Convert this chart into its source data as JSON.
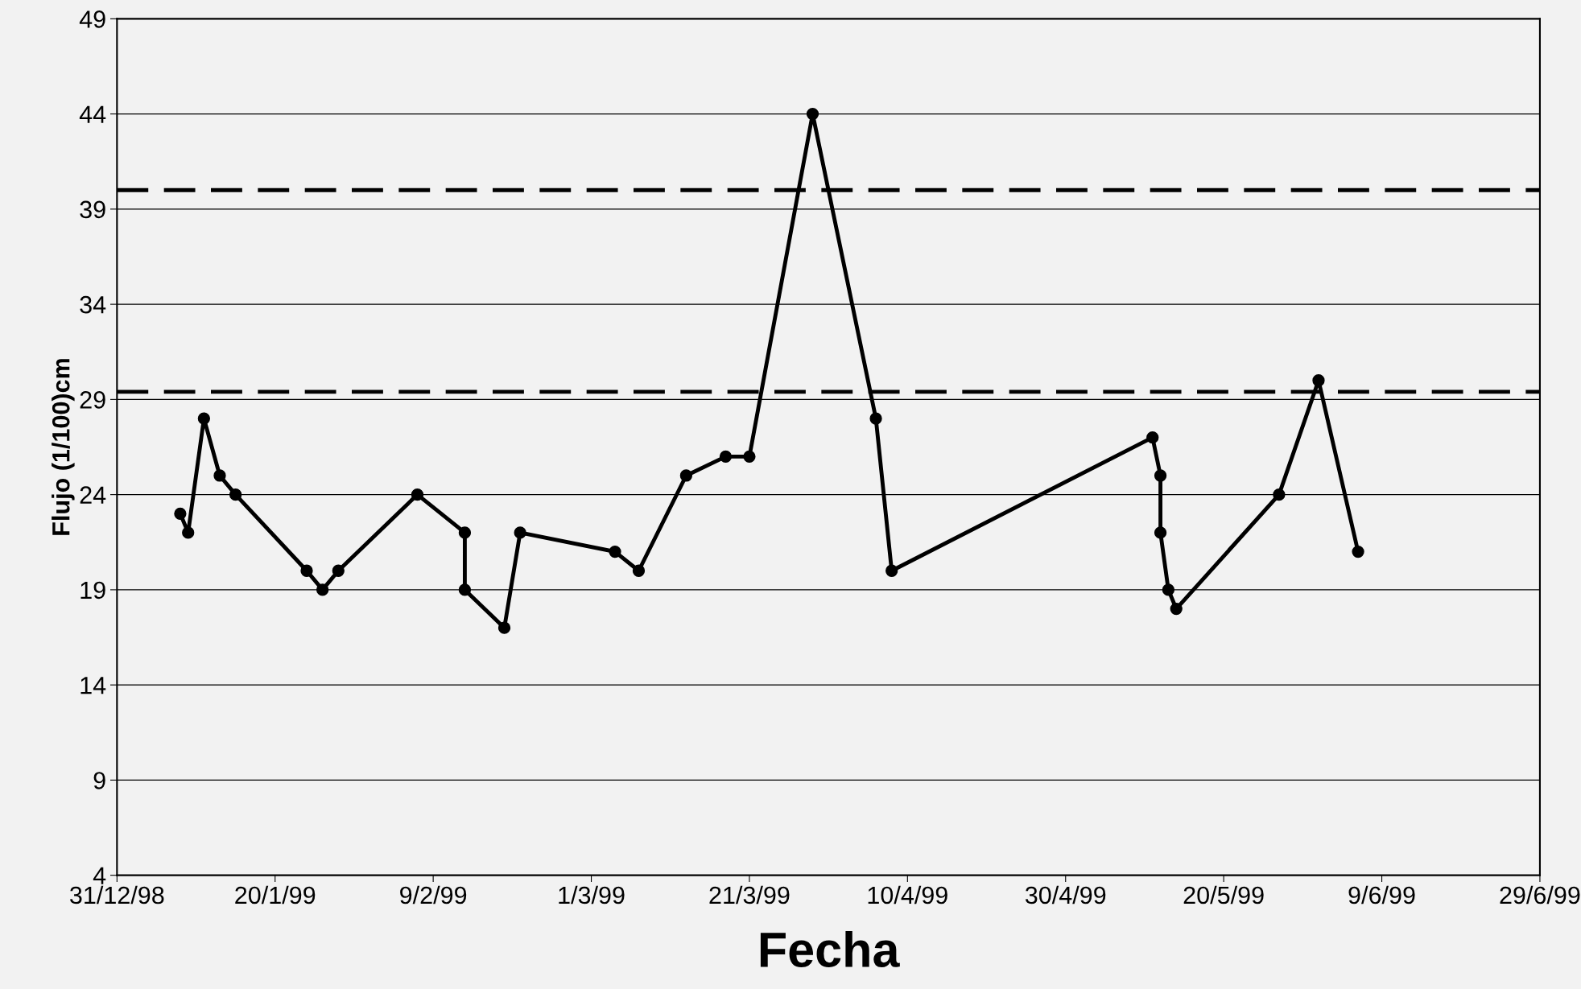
{
  "chart_data": {
    "type": "line",
    "xlabel": "Fecha",
    "ylabel": "Flujo (1/100)cm",
    "x": [
      "1999-01-08",
      "1999-01-09",
      "1999-01-11",
      "1999-01-13",
      "1999-01-15",
      "1999-01-24",
      "1999-01-26",
      "1999-01-28",
      "1999-02-07",
      "1999-02-13",
      "1999-02-13",
      "1999-02-18",
      "1999-02-20",
      "1999-03-04",
      "1999-03-07",
      "1999-03-13",
      "1999-03-18",
      "1999-03-21",
      "1999-03-29",
      "1999-04-06",
      "1999-04-08",
      "1999-05-11",
      "1999-05-12",
      "1999-05-12",
      "1999-05-13",
      "1999-05-14",
      "1999-05-27",
      "1999-06-01",
      "1999-06-06"
    ],
    "series": [
      {
        "color": "#000000",
        "values": [
          23,
          22,
          28,
          25,
          24,
          20,
          19,
          20,
          24,
          22,
          19,
          17,
          22,
          21,
          20,
          25,
          26,
          26,
          44,
          28,
          20,
          27,
          25,
          22,
          19,
          18,
          24,
          30,
          21
        ]
      }
    ],
    "marker": "circle",
    "line_style": "solid",
    "xlim": [
      "1998-12-31",
      "1999-06-29"
    ],
    "xticks": [
      {
        "value": "1998-12-31",
        "label": "31/12/98"
      },
      {
        "value": "1999-01-20",
        "label": "20/1/99"
      },
      {
        "value": "1999-02-09",
        "label": "9/2/99"
      },
      {
        "value": "1999-03-01",
        "label": "1/3/99"
      },
      {
        "value": "1999-03-21",
        "label": "21/3/99"
      },
      {
        "value": "1999-04-10",
        "label": "10/4/99"
      },
      {
        "value": "1999-04-30",
        "label": "30/4/99"
      },
      {
        "value": "1999-05-20",
        "label": "20/5/99"
      },
      {
        "value": "1999-06-09",
        "label": "9/6/99"
      },
      {
        "value": "1999-06-29",
        "label": "29/6/99"
      }
    ],
    "ylim": [
      4,
      49
    ],
    "yticks": [
      4,
      9,
      14,
      19,
      24,
      29,
      34,
      39,
      44,
      49
    ],
    "grid": "y",
    "ref_lines": [
      {
        "axis": "y",
        "value": 40,
        "color": "#000000",
        "line_style": "dashed"
      },
      {
        "axis": "y",
        "value": 29.4,
        "color": "#000000",
        "line_style": "dashed"
      }
    ]
  }
}
